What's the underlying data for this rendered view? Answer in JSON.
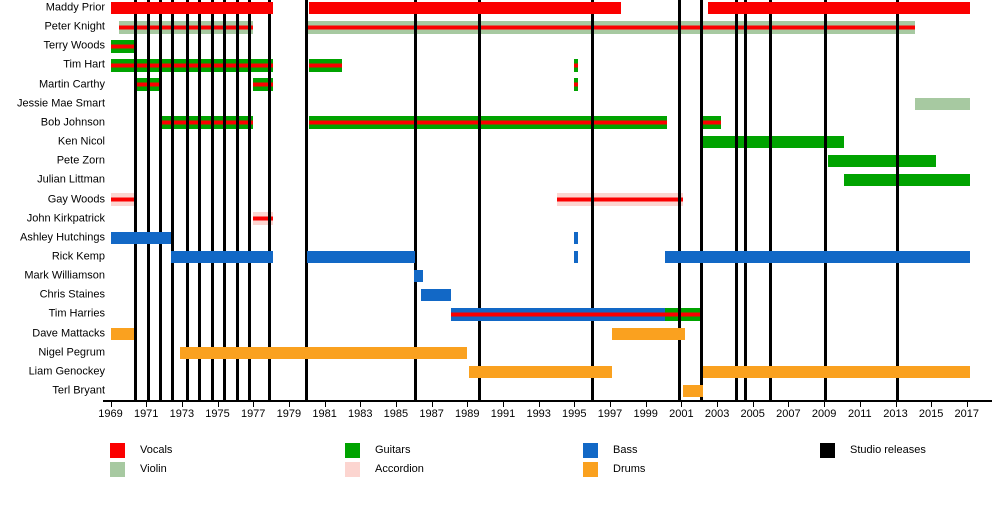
{
  "chart_data": {
    "type": "bar",
    "subtype": "membership-timeline-gantt",
    "title": "",
    "xlabel": "",
    "ylabel": "",
    "x_axis": {
      "min": 1969,
      "max": 2017.5,
      "tick_years": [
        1969,
        1971,
        1973,
        1975,
        1977,
        1979,
        1981,
        1983,
        1985,
        1987,
        1989,
        1991,
        1993,
        1995,
        1997,
        1999,
        2001,
        2003,
        2005,
        2007,
        2009,
        2011,
        2013,
        2015,
        2017
      ]
    },
    "members": [
      {
        "name": "Maddy Prior",
        "segments": [
          {
            "start": 1969.0,
            "end": 1978.1,
            "instruments": [
              "vocals"
            ]
          },
          {
            "start": 1980.1,
            "end": 1997.6,
            "instruments": [
              "vocals"
            ]
          },
          {
            "start": 2002.5,
            "end": 2017.2,
            "instruments": [
              "vocals"
            ]
          }
        ]
      },
      {
        "name": "Peter Knight",
        "segments": [
          {
            "start": 1969.5,
            "end": 1977.0,
            "instruments": [
              "violin",
              "vocals"
            ]
          },
          {
            "start": 1980.0,
            "end": 2014.1,
            "instruments": [
              "violin",
              "vocals"
            ]
          }
        ]
      },
      {
        "name": "Terry Woods",
        "segments": [
          {
            "start": 1969.0,
            "end": 1970.4,
            "instruments": [
              "guitars",
              "vocals"
            ]
          }
        ]
      },
      {
        "name": "Tim Hart",
        "segments": [
          {
            "start": 1969.0,
            "end": 1978.1,
            "instruments": [
              "guitars",
              "vocals"
            ]
          },
          {
            "start": 1980.1,
            "end": 1982.0,
            "instruments": [
              "guitars",
              "vocals"
            ]
          },
          {
            "start": 1995.0,
            "end": 1995.2,
            "instruments": [
              "guitars",
              "vocals"
            ]
          }
        ]
      },
      {
        "name": "Martin Carthy",
        "segments": [
          {
            "start": 1970.4,
            "end": 1971.9,
            "instruments": [
              "guitars",
              "vocals"
            ]
          },
          {
            "start": 1977.0,
            "end": 1978.1,
            "instruments": [
              "guitars",
              "vocals"
            ]
          },
          {
            "start": 1995.0,
            "end": 1995.2,
            "instruments": [
              "guitars",
              "vocals"
            ]
          }
        ]
      },
      {
        "name": "Jessie Mae Smart",
        "segments": [
          {
            "start": 2014.1,
            "end": 2017.2,
            "instruments": [
              "violin"
            ]
          }
        ]
      },
      {
        "name": "Bob Johnson",
        "segments": [
          {
            "start": 1971.9,
            "end": 1977.0,
            "instruments": [
              "guitars",
              "vocals"
            ]
          },
          {
            "start": 1980.1,
            "end": 2000.2,
            "instruments": [
              "guitars",
              "vocals"
            ]
          },
          {
            "start": 2002.1,
            "end": 2003.2,
            "instruments": [
              "guitars",
              "vocals"
            ]
          }
        ]
      },
      {
        "name": "Ken Nicol",
        "segments": [
          {
            "start": 2002.2,
            "end": 2010.1,
            "instruments": [
              "guitars"
            ]
          }
        ]
      },
      {
        "name": "Pete Zorn",
        "segments": [
          {
            "start": 2009.2,
            "end": 2015.3,
            "instruments": [
              "guitars"
            ]
          }
        ]
      },
      {
        "name": "Julian Littman",
        "segments": [
          {
            "start": 2010.1,
            "end": 2017.2,
            "instruments": [
              "guitars"
            ]
          }
        ]
      },
      {
        "name": "Gay Woods",
        "segments": [
          {
            "start": 1969.0,
            "end": 1970.4,
            "instruments": [
              "accordion",
              "vocals"
            ]
          },
          {
            "start": 1994.0,
            "end": 2001.1,
            "instruments": [
              "accordion",
              "vocals"
            ]
          }
        ]
      },
      {
        "name": "John Kirkpatrick",
        "segments": [
          {
            "start": 1977.0,
            "end": 1978.1,
            "instruments": [
              "accordion",
              "vocals"
            ]
          }
        ]
      },
      {
        "name": "Ashley Hutchings",
        "segments": [
          {
            "start": 1969.0,
            "end": 1972.4,
            "instruments": [
              "bass"
            ]
          },
          {
            "start": 1995.0,
            "end": 1995.2,
            "instruments": [
              "bass"
            ]
          }
        ]
      },
      {
        "name": "Rick Kemp",
        "segments": [
          {
            "start": 1972.4,
            "end": 1978.1,
            "instruments": [
              "bass"
            ]
          },
          {
            "start": 1980.0,
            "end": 1986.1,
            "instruments": [
              "bass"
            ]
          },
          {
            "start": 1995.0,
            "end": 1995.2,
            "instruments": [
              "bass"
            ]
          },
          {
            "start": 2000.1,
            "end": 2017.2,
            "instruments": [
              "bass"
            ]
          }
        ]
      },
      {
        "name": "Mark Williamson",
        "segments": [
          {
            "start": 1986.0,
            "end": 1986.5,
            "instruments": [
              "bass"
            ]
          }
        ]
      },
      {
        "name": "Chris Staines",
        "segments": [
          {
            "start": 1986.4,
            "end": 1988.1,
            "instruments": [
              "bass"
            ]
          }
        ]
      },
      {
        "name": "Tim Harries",
        "segments": [
          {
            "start": 1988.1,
            "end": 2000.1,
            "instruments": [
              "bass",
              "vocals"
            ]
          },
          {
            "start": 2000.1,
            "end": 2002.2,
            "instruments": [
              "guitars",
              "vocals"
            ]
          }
        ]
      },
      {
        "name": "Dave Mattacks",
        "segments": [
          {
            "start": 1969.0,
            "end": 1970.3,
            "instruments": [
              "drums"
            ]
          },
          {
            "start": 1997.1,
            "end": 2001.2,
            "instruments": [
              "drums"
            ]
          }
        ]
      },
      {
        "name": "Nigel Pegrum",
        "segments": [
          {
            "start": 1972.9,
            "end": 1989.0,
            "instruments": [
              "drums"
            ]
          }
        ]
      },
      {
        "name": "Liam Genockey",
        "segments": [
          {
            "start": 1989.1,
            "end": 1997.1,
            "instruments": [
              "drums"
            ]
          },
          {
            "start": 2002.2,
            "end": 2017.2,
            "instruments": [
              "drums"
            ]
          }
        ]
      },
      {
        "name": "Terl Bryant",
        "segments": [
          {
            "start": 2001.1,
            "end": 2002.2,
            "instruments": [
              "drums"
            ]
          }
        ]
      }
    ],
    "studio_release_years": [
      1970.4,
      1971.1,
      1971.8,
      1972.5,
      1973.3,
      1974.0,
      1974.7,
      1975.4,
      1976.1,
      1976.8,
      1977.9,
      1980.0,
      1986.1,
      1989.7,
      1996.0,
      2000.9,
      2002.1,
      2004.1,
      2004.6,
      2006.0,
      2009.1,
      2013.1
    ],
    "legend_position": "bottom"
  },
  "palette": {
    "vocals": "#fb0000",
    "guitars": "#00a300",
    "bass": "#1268c6",
    "drums": "#faa11f",
    "violin": "#a7c9a1",
    "accordion": "#fcd5d0",
    "studio": "#000000"
  },
  "legend": {
    "items": [
      {
        "label": "Vocals",
        "key": "vocals"
      },
      {
        "label": "Guitars",
        "key": "guitars"
      },
      {
        "label": "Bass",
        "key": "bass"
      },
      {
        "label": "Studio releases",
        "key": "studio"
      },
      {
        "label": "Violin",
        "key": "violin"
      },
      {
        "label": "Accordion",
        "key": "accordion"
      },
      {
        "label": "Drums",
        "key": "drums"
      }
    ]
  }
}
